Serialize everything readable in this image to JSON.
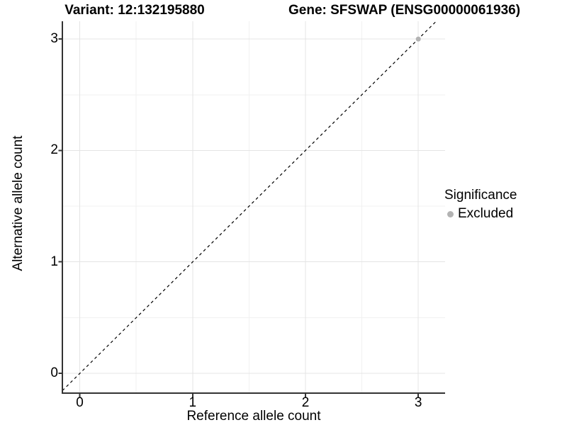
{
  "titles": {
    "variant": "Variant: 12:132195880",
    "gene": "Gene: SFSWAP (ENSG00000061936)"
  },
  "chart_data": {
    "type": "scatter",
    "title_left": "Variant: 12:132195880",
    "title_right": "Gene: SFSWAP (ENSG00000061936)",
    "xlabel": "Reference allele count",
    "ylabel": "Alternative allele count",
    "x_ticks": [
      "0",
      "1",
      "2",
      "3"
    ],
    "y_ticks": [
      "0",
      "1",
      "2",
      "3"
    ],
    "xlim": [
      -0.16,
      3.24
    ],
    "ylim": [
      -0.17,
      3.16
    ],
    "grid": {
      "major": true,
      "minor": true
    },
    "points": [
      {
        "x": 3,
        "y": 3,
        "group": "Excluded"
      }
    ],
    "reference_line": {
      "kind": "identity",
      "equation": "y = x",
      "style": "dashed",
      "color": "#000000"
    },
    "legend": {
      "title": "Significance",
      "position": "right",
      "items": [
        {
          "label": "Excluded",
          "color": "#b3b3b3"
        }
      ]
    }
  },
  "colors": {
    "background": "#ffffff",
    "grid_major": "#e4e4e4",
    "grid_minor": "#f1f1f1",
    "axis_line": "#333333",
    "text": "#000000",
    "point_excluded": "#b3b3b3"
  }
}
